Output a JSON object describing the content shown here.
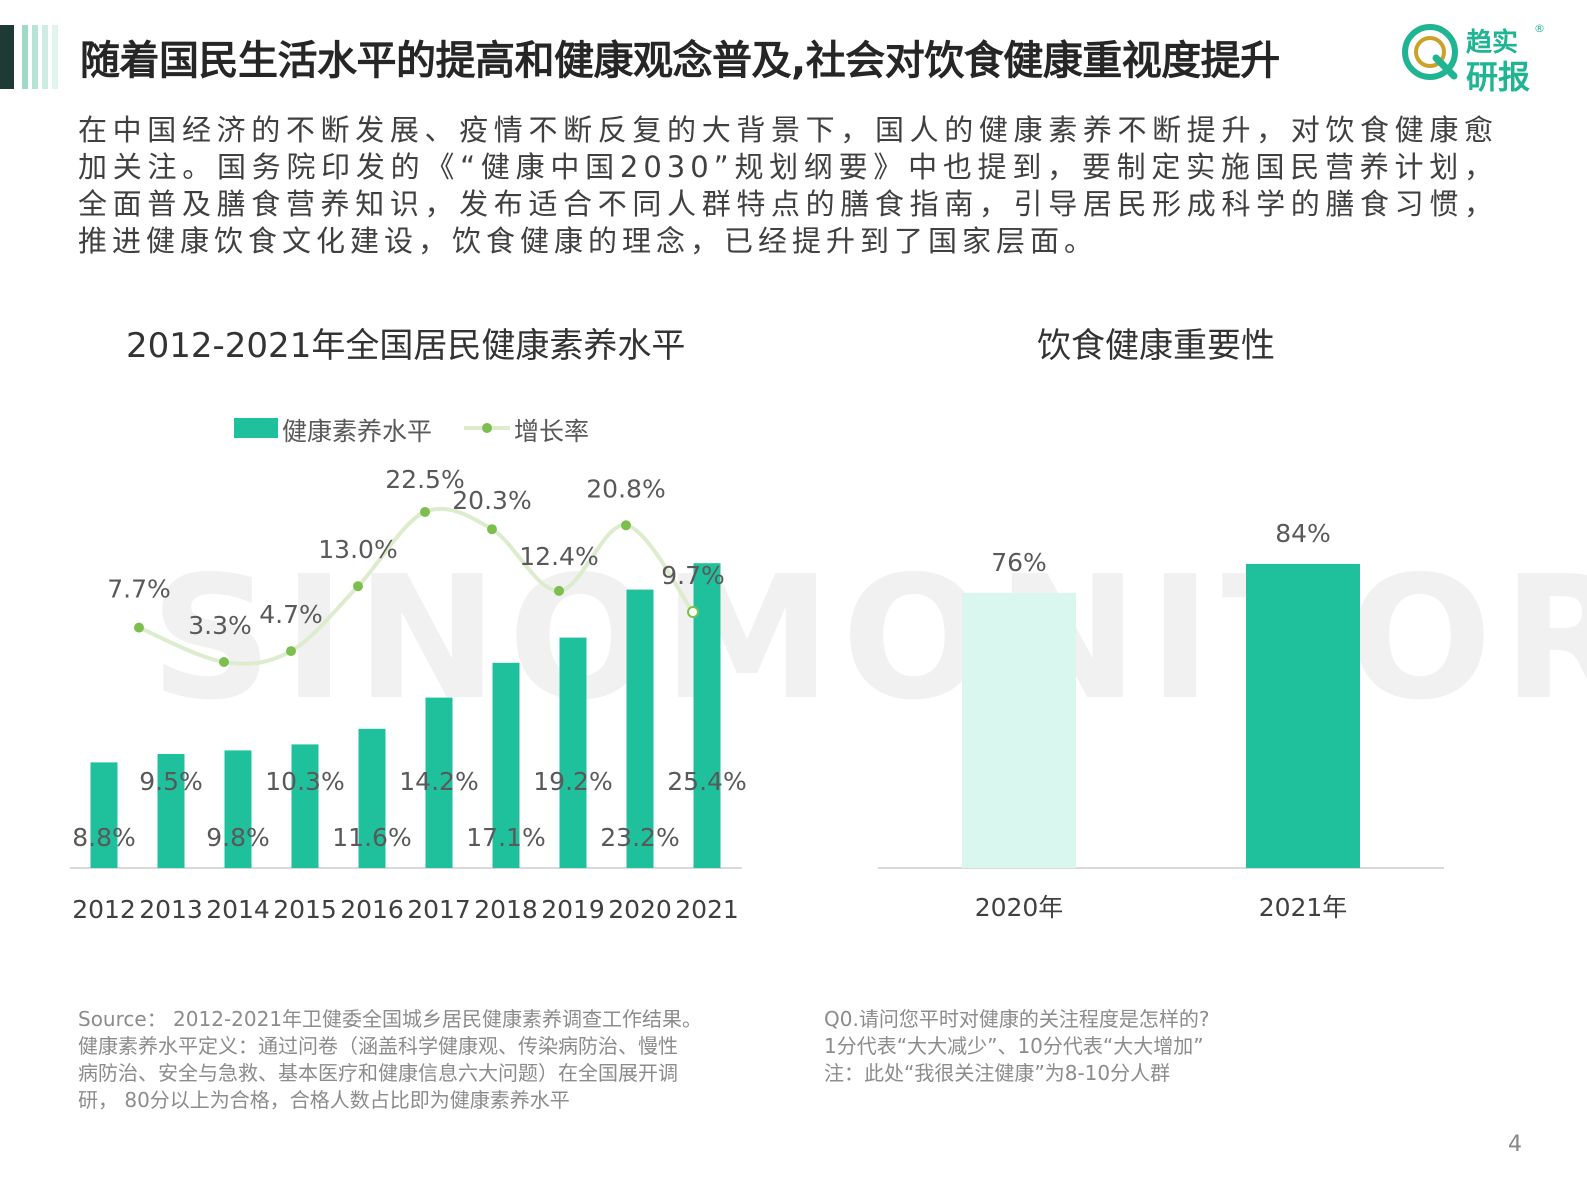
{
  "header": {
    "title": "随着国民生活水平的提高和健康观念普及,社会对饮食健康重视度提升",
    "logo_line1": "趋实",
    "logo_line2": "研报",
    "logo_mark": "®"
  },
  "intro": "在中国经济的不断发展、疫情不断反复的大背景下，国人的健康素养不断提升，对饮食健康愈加关注。国务院印发的《“健康中国2030”规划纲要》中也提到，要制定实施国民营养计划，全面普及膳食营养知识，发布适合不同人群特点的膳食指南，引导居民形成科学的膳食习惯，推进健康饮食文化建设，饮食健康的理念，已经提升到了国家层面。",
  "watermark": "SINOMONITOR",
  "chart_data": [
    {
      "type": "bar",
      "title": "2012-2021年全国居民健康素养水平",
      "categories": [
        "2012",
        "2013",
        "2014",
        "2015",
        "2016",
        "2017",
        "2018",
        "2019",
        "2020",
        "2021"
      ],
      "series": [
        {
          "name": "健康素养水平",
          "type": "bar",
          "values": [
            8.8,
            9.5,
            9.8,
            10.3,
            11.6,
            14.2,
            17.1,
            19.2,
            23.2,
            25.4
          ],
          "labels": [
            "8.8%",
            "9.5%",
            "9.8%",
            "10.3%",
            "11.6%",
            "14.2%",
            "17.1%",
            "19.2%",
            "23.2%",
            "25.4%"
          ]
        },
        {
          "name": "增长率",
          "type": "line",
          "values": [
            7.7,
            3.3,
            4.7,
            13.0,
            22.5,
            20.3,
            12.4,
            20.8,
            9.7
          ],
          "x": [
            "2013",
            "2014",
            "2015",
            "2016",
            "2017",
            "2018",
            "2019",
            "2020",
            "2021"
          ],
          "labels": [
            "7.7%",
            "3.3%",
            "4.7%",
            "13.0%",
            "22.5%",
            "20.3%",
            "12.4%",
            "20.8%",
            "9.7%"
          ]
        }
      ],
      "legend": "top-left",
      "grid": false,
      "ylim": [
        0,
        27
      ]
    },
    {
      "type": "bar",
      "title": "饮食健康重要性",
      "categories": [
        "2020年",
        "2021年"
      ],
      "values": [
        76,
        84
      ],
      "labels": [
        "76%",
        "84%"
      ],
      "colors": [
        "#d9f6ef",
        "#1fc19d"
      ],
      "ylim": [
        0,
        88
      ],
      "grid": false
    }
  ],
  "source_lines": [
    "Source： 2012-2021年卫健委全国城乡居民健康素养调查工作结果。",
    "健康素养水平定义：通过问卷（涵盖科学健康观、传染病防治、慢性",
    "病防治、安全与急救、基本医疗和健康信息六大问题）在全国展开调",
    "研， 80分以上为合格，合格人数占比即为健康素养水平"
  ],
  "note_lines": [
    "Q0.请问您平时对健康的关注程度是怎样的?",
    "1分代表“大大减少”、10分代表“大大增加”",
    "注：此处“我很关注健康”为8-10分人群"
  ],
  "page_number": "4",
  "colors": {
    "accent": "#1fc19d",
    "line": "#dceccd",
    "dot": "#7cbf4f",
    "header_bar_dark": "#1e3a35",
    "header_bar_light": "#b7e4d7"
  }
}
